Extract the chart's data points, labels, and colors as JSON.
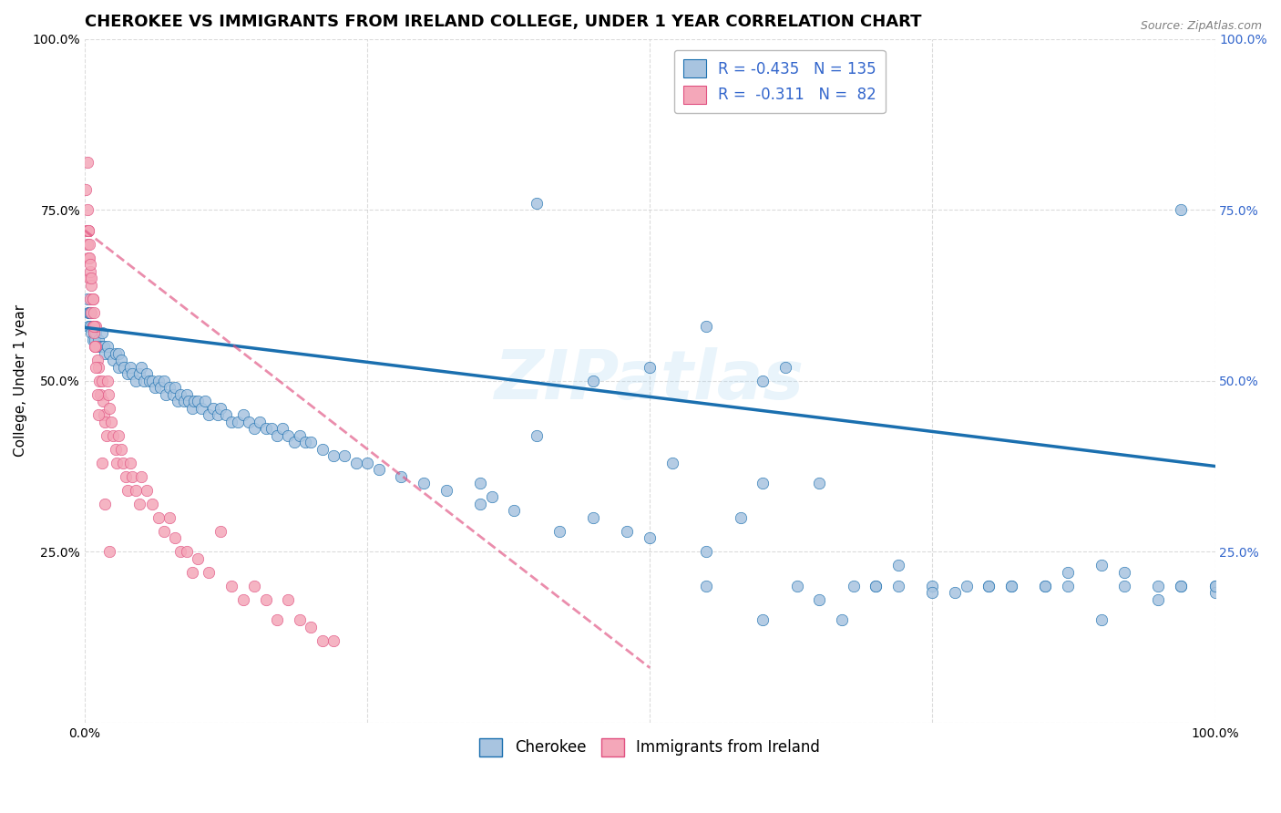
{
  "title": "CHEROKEE VS IMMIGRANTS FROM IRELAND COLLEGE, UNDER 1 YEAR CORRELATION CHART",
  "source": "Source: ZipAtlas.com",
  "ylabel": "College, Under 1 year",
  "xlim": [
    0,
    1
  ],
  "ylim": [
    0,
    1
  ],
  "cherokee_color": "#a8c4e0",
  "ireland_color": "#f4a7b9",
  "cherokee_line_color": "#1a6faf",
  "ireland_line_color": "#e05080",
  "legend_text_color": "#3366cc",
  "grid_color": "#cccccc",
  "background_color": "#ffffff",
  "cherokee_x": [
    0.002,
    0.003,
    0.003,
    0.004,
    0.005,
    0.005,
    0.006,
    0.007,
    0.007,
    0.008,
    0.009,
    0.01,
    0.012,
    0.013,
    0.015,
    0.015,
    0.017,
    0.018,
    0.02,
    0.022,
    0.025,
    0.027,
    0.03,
    0.03,
    0.032,
    0.035,
    0.038,
    0.04,
    0.042,
    0.045,
    0.048,
    0.05,
    0.052,
    0.055,
    0.057,
    0.06,
    0.062,
    0.065,
    0.067,
    0.07,
    0.072,
    0.075,
    0.078,
    0.08,
    0.082,
    0.085,
    0.088,
    0.09,
    0.092,
    0.095,
    0.097,
    0.1,
    0.103,
    0.106,
    0.11,
    0.114,
    0.118,
    0.12,
    0.125,
    0.13,
    0.135,
    0.14,
    0.145,
    0.15,
    0.155,
    0.16,
    0.165,
    0.17,
    0.175,
    0.18,
    0.185,
    0.19,
    0.195,
    0.2,
    0.21,
    0.22,
    0.23,
    0.24,
    0.25,
    0.26,
    0.28,
    0.3,
    0.32,
    0.35,
    0.36,
    0.38,
    0.4,
    0.42,
    0.45,
    0.48,
    0.5,
    0.52,
    0.55,
    0.58,
    0.6,
    0.63,
    0.65,
    0.68,
    0.7,
    0.72,
    0.75,
    0.78,
    0.8,
    0.82,
    0.85,
    0.87,
    0.9,
    0.92,
    0.95,
    0.97,
    1.0,
    0.35,
    0.4,
    0.45,
    0.5,
    0.55,
    0.6,
    0.65,
    0.7,
    0.75,
    0.8,
    0.85,
    0.9,
    0.95,
    1.0,
    0.97,
    0.62,
    0.67,
    0.72,
    0.77,
    0.82,
    0.87,
    0.92,
    0.97,
    1.0,
    0.55,
    0.6
  ],
  "cherokee_y": [
    0.62,
    0.6,
    0.58,
    0.6,
    0.58,
    0.6,
    0.57,
    0.58,
    0.56,
    0.57,
    0.56,
    0.57,
    0.56,
    0.55,
    0.57,
    0.55,
    0.55,
    0.54,
    0.55,
    0.54,
    0.53,
    0.54,
    0.52,
    0.54,
    0.53,
    0.52,
    0.51,
    0.52,
    0.51,
    0.5,
    0.51,
    0.52,
    0.5,
    0.51,
    0.5,
    0.5,
    0.49,
    0.5,
    0.49,
    0.5,
    0.48,
    0.49,
    0.48,
    0.49,
    0.47,
    0.48,
    0.47,
    0.48,
    0.47,
    0.46,
    0.47,
    0.47,
    0.46,
    0.47,
    0.45,
    0.46,
    0.45,
    0.46,
    0.45,
    0.44,
    0.44,
    0.45,
    0.44,
    0.43,
    0.44,
    0.43,
    0.43,
    0.42,
    0.43,
    0.42,
    0.41,
    0.42,
    0.41,
    0.41,
    0.4,
    0.39,
    0.39,
    0.38,
    0.38,
    0.37,
    0.36,
    0.35,
    0.34,
    0.32,
    0.33,
    0.31,
    0.42,
    0.28,
    0.5,
    0.28,
    0.52,
    0.38,
    0.58,
    0.3,
    0.35,
    0.2,
    0.35,
    0.2,
    0.2,
    0.23,
    0.2,
    0.2,
    0.2,
    0.2,
    0.2,
    0.22,
    0.23,
    0.2,
    0.2,
    0.2,
    0.2,
    0.35,
    0.76,
    0.3,
    0.27,
    0.2,
    0.15,
    0.18,
    0.2,
    0.19,
    0.2,
    0.2,
    0.15,
    0.18,
    0.19,
    0.75,
    0.52,
    0.15,
    0.2,
    0.19,
    0.2,
    0.2,
    0.22,
    0.2,
    0.2,
    0.25,
    0.5
  ],
  "ireland_x": [
    0.001,
    0.001,
    0.002,
    0.002,
    0.002,
    0.003,
    0.003,
    0.004,
    0.004,
    0.005,
    0.005,
    0.006,
    0.006,
    0.007,
    0.007,
    0.008,
    0.008,
    0.009,
    0.009,
    0.01,
    0.01,
    0.011,
    0.012,
    0.013,
    0.014,
    0.015,
    0.016,
    0.017,
    0.018,
    0.019,
    0.02,
    0.021,
    0.022,
    0.023,
    0.025,
    0.027,
    0.028,
    0.03,
    0.032,
    0.034,
    0.036,
    0.038,
    0.04,
    0.042,
    0.045,
    0.048,
    0.05,
    0.055,
    0.06,
    0.065,
    0.07,
    0.075,
    0.08,
    0.085,
    0.09,
    0.095,
    0.1,
    0.11,
    0.12,
    0.13,
    0.14,
    0.15,
    0.16,
    0.17,
    0.18,
    0.19,
    0.2,
    0.21,
    0.22,
    0.003,
    0.004,
    0.005,
    0.006,
    0.007,
    0.008,
    0.009,
    0.01,
    0.011,
    0.012,
    0.015,
    0.018,
    0.022
  ],
  "ireland_y": [
    0.72,
    0.78,
    0.7,
    0.75,
    0.82,
    0.68,
    0.72,
    0.65,
    0.68,
    0.62,
    0.66,
    0.6,
    0.64,
    0.58,
    0.62,
    0.57,
    0.6,
    0.55,
    0.58,
    0.55,
    0.58,
    0.53,
    0.52,
    0.5,
    0.48,
    0.5,
    0.47,
    0.45,
    0.44,
    0.42,
    0.5,
    0.48,
    0.46,
    0.44,
    0.42,
    0.4,
    0.38,
    0.42,
    0.4,
    0.38,
    0.36,
    0.34,
    0.38,
    0.36,
    0.34,
    0.32,
    0.36,
    0.34,
    0.32,
    0.3,
    0.28,
    0.3,
    0.27,
    0.25,
    0.25,
    0.22,
    0.24,
    0.22,
    0.28,
    0.2,
    0.18,
    0.2,
    0.18,
    0.15,
    0.18,
    0.15,
    0.14,
    0.12,
    0.12,
    0.72,
    0.7,
    0.67,
    0.65,
    0.62,
    0.58,
    0.55,
    0.52,
    0.48,
    0.45,
    0.38,
    0.32,
    0.25
  ],
  "cherokee_trend_x": [
    0.0,
    1.0
  ],
  "cherokee_trend_y": [
    0.578,
    0.375
  ],
  "ireland_trend_x": [
    0.0,
    0.5
  ],
  "ireland_trend_y": [
    0.72,
    0.08
  ],
  "title_fontsize": 13,
  "axis_label_fontsize": 11,
  "tick_fontsize": 10,
  "legend_fontsize": 12
}
